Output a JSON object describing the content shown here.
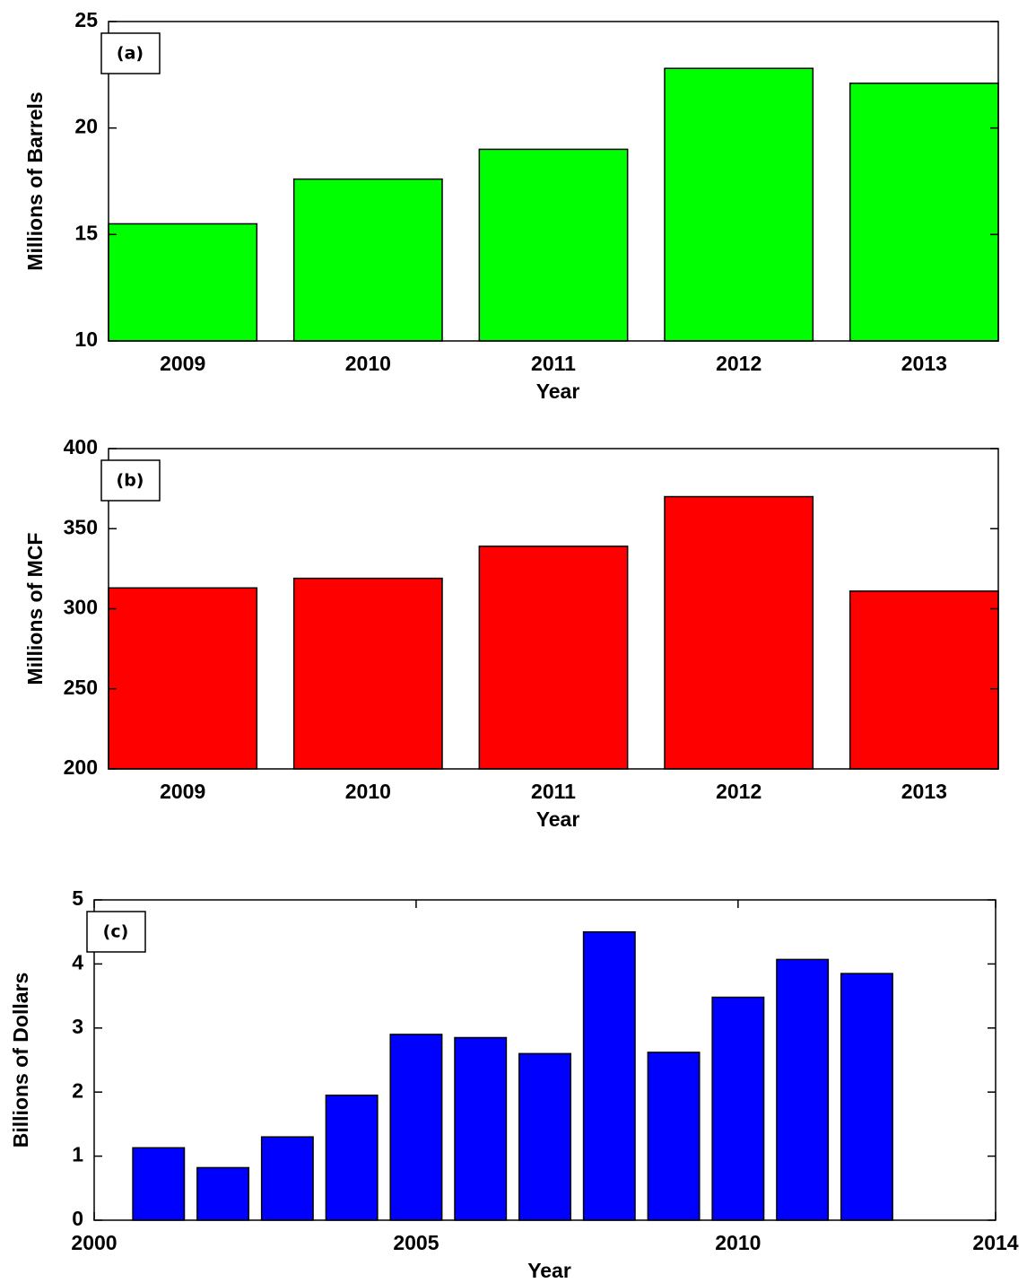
{
  "chart_data": [
    {
      "type": "bar",
      "panel_label": "(a)",
      "xlabel": "Year",
      "ylabel": "Millions of Barrels",
      "categories": [
        "2009",
        "2010",
        "2011",
        "2012",
        "2013"
      ],
      "values": [
        15.5,
        17.6,
        19.0,
        22.8,
        22.1
      ],
      "color": "#00ff00",
      "ylim": [
        10,
        25
      ],
      "yticks": [
        10,
        15,
        20,
        25
      ]
    },
    {
      "type": "bar",
      "panel_label": "(b)",
      "xlabel": "Year",
      "ylabel": "Millions of MCF",
      "categories": [
        "2009",
        "2010",
        "2011",
        "2012",
        "2013"
      ],
      "values": [
        313,
        319,
        339,
        370,
        311
      ],
      "color": "#ff0000",
      "ylim": [
        200,
        400
      ],
      "yticks": [
        200,
        250,
        300,
        350,
        400
      ]
    },
    {
      "type": "bar",
      "panel_label": "(c)",
      "xlabel": "Year",
      "ylabel": "Billions of Dollars",
      "x": [
        2001,
        2002,
        2003,
        2004,
        2005,
        2006,
        2007,
        2008,
        2009,
        2010,
        2011,
        2012
      ],
      "values": [
        1.13,
        0.82,
        1.3,
        1.95,
        2.9,
        2.85,
        2.6,
        4.5,
        2.62,
        3.48,
        4.07,
        3.85
      ],
      "color": "#0000ff",
      "xlim": [
        2000,
        2014
      ],
      "xticks": [
        2000,
        2005,
        2010,
        2014
      ],
      "ylim": [
        0,
        5
      ],
      "yticks": [
        0,
        1,
        2,
        3,
        4,
        5
      ]
    }
  ]
}
